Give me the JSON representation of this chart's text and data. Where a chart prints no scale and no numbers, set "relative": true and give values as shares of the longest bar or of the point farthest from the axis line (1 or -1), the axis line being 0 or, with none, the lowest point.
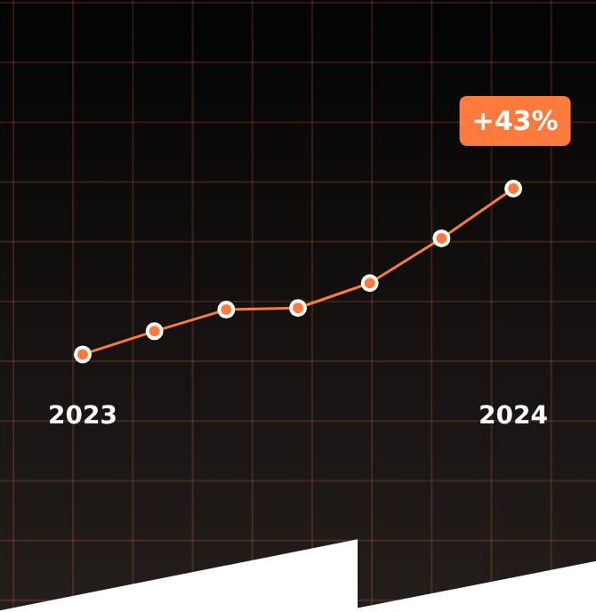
{
  "chart_data": {
    "type": "line",
    "relative": true,
    "categories": [
      "2023",
      null,
      null,
      null,
      null,
      null,
      "2024"
    ],
    "series": [
      {
        "color": "#ff7a3d",
        "values": [
          0,
          0.14,
          0.27,
          0.28,
          0.43,
          0.7,
          1
        ]
      }
    ],
    "marker": "circle",
    "line_style": "solid",
    "legend": false,
    "annotations": [
      {
        "text": "+43%",
        "x": "2024",
        "y": 1
      }
    ]
  }
}
